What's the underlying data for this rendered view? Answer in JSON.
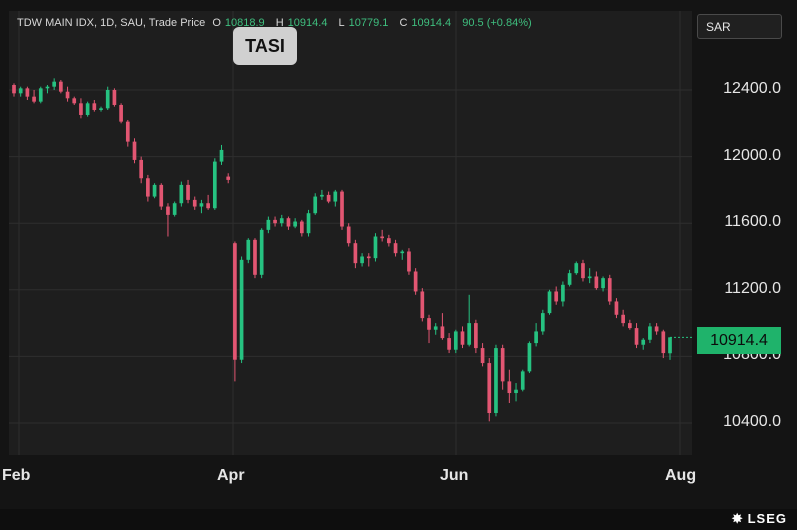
{
  "header": {
    "symbol": "TDW MAIN IDX, 1D, SAU, Trade Price",
    "open_label": "O",
    "open": "10818.9",
    "high_label": "H",
    "high": "10914.4",
    "low_label": "L",
    "low": "10779.1",
    "close_label": "C",
    "close": "10914.4",
    "change": "90.5 (+0.84%)"
  },
  "tag": "TASI",
  "currency": "SAR",
  "logo": "LSEG",
  "colors": {
    "up": "#26c281",
    "down": "#e25672",
    "bg": "#1e1e1e",
    "grid": "#2e2e2e"
  },
  "chart_data": {
    "type": "candlestick",
    "y_ticks": [
      "12400.0",
      "12000.0",
      "11600.0",
      "11200.0",
      "10800.0",
      "10400.0"
    ],
    "x_ticks": [
      "Feb",
      "Apr",
      "Jun",
      "Aug"
    ],
    "ylim": [
      10250,
      12650
    ],
    "last_price": "10914.4",
    "grid": true,
    "candles": [
      [
        12430,
        12440,
        12360,
        12380
      ],
      [
        12380,
        12420,
        12360,
        12410
      ],
      [
        12410,
        12420,
        12340,
        12360
      ],
      [
        12360,
        12400,
        12320,
        12330
      ],
      [
        12330,
        12420,
        12320,
        12410
      ],
      [
        12410,
        12430,
        12380,
        12420
      ],
      [
        12420,
        12470,
        12400,
        12450
      ],
      [
        12450,
        12460,
        12380,
        12390
      ],
      [
        12390,
        12420,
        12330,
        12350
      ],
      [
        12350,
        12360,
        12310,
        12320
      ],
      [
        12320,
        12350,
        12230,
        12250
      ],
      [
        12250,
        12330,
        12240,
        12320
      ],
      [
        12320,
        12340,
        12270,
        12280
      ],
      [
        12280,
        12300,
        12270,
        12290
      ],
      [
        12290,
        12420,
        12280,
        12400
      ],
      [
        12400,
        12410,
        12300,
        12310
      ],
      [
        12310,
        12320,
        12200,
        12210
      ],
      [
        12210,
        12220,
        12060,
        12090
      ],
      [
        12090,
        12110,
        11960,
        11980
      ],
      [
        11980,
        12000,
        11840,
        11870
      ],
      [
        11870,
        11890,
        11730,
        11760
      ],
      [
        11760,
        11840,
        11750,
        11830
      ],
      [
        11830,
        11840,
        11680,
        11700
      ],
      [
        11700,
        11720,
        11520,
        11650
      ],
      [
        11650,
        11730,
        11640,
        11720
      ],
      [
        11720,
        11850,
        11700,
        11830
      ],
      [
        11830,
        11860,
        11720,
        11740
      ],
      [
        11740,
        11760,
        11680,
        11700
      ],
      [
        11700,
        11740,
        11660,
        11720
      ],
      [
        11720,
        11770,
        11680,
        11690
      ],
      [
        11690,
        11990,
        11680,
        11970
      ],
      [
        11970,
        12070,
        11950,
        12040
      ],
      [
        11880,
        11900,
        11840,
        11860
      ],
      [
        11480,
        11490,
        10650,
        10780
      ],
      [
        10780,
        11400,
        10760,
        11380
      ],
      [
        11380,
        11510,
        11360,
        11500
      ],
      [
        11500,
        11510,
        11270,
        11290
      ],
      [
        11290,
        11570,
        11270,
        11560
      ],
      [
        11560,
        11640,
        11540,
        11620
      ],
      [
        11620,
        11640,
        11580,
        11600
      ],
      [
        11600,
        11650,
        11580,
        11630
      ],
      [
        11630,
        11640,
        11560,
        11580
      ],
      [
        11580,
        11630,
        11570,
        11610
      ],
      [
        11610,
        11620,
        11520,
        11540
      ],
      [
        11540,
        11680,
        11520,
        11660
      ],
      [
        11660,
        11780,
        11650,
        11760
      ],
      [
        11760,
        11800,
        11740,
        11770
      ],
      [
        11770,
        11790,
        11720,
        11730
      ],
      [
        11730,
        11800,
        11700,
        11790
      ],
      [
        11790,
        11800,
        11560,
        11580
      ],
      [
        11580,
        11600,
        11460,
        11480
      ],
      [
        11480,
        11500,
        11330,
        11360
      ],
      [
        11360,
        11420,
        11340,
        11400
      ],
      [
        11400,
        11420,
        11340,
        11390
      ],
      [
        11390,
        11540,
        11370,
        11520
      ],
      [
        11520,
        11560,
        11490,
        11510
      ],
      [
        11510,
        11530,
        11460,
        11480
      ],
      [
        11480,
        11500,
        11400,
        11420
      ],
      [
        11420,
        11440,
        11380,
        11430
      ],
      [
        11430,
        11450,
        11290,
        11310
      ],
      [
        11310,
        11330,
        11170,
        11190
      ],
      [
        11190,
        11210,
        11010,
        11030
      ],
      [
        11030,
        11050,
        10880,
        10960
      ],
      [
        10960,
        11000,
        10930,
        10980
      ],
      [
        10980,
        11060,
        10900,
        10910
      ],
      [
        10910,
        10940,
        10820,
        10840
      ],
      [
        10840,
        10960,
        10820,
        10950
      ],
      [
        10950,
        10980,
        10850,
        10870
      ],
      [
        10870,
        11170,
        10860,
        11000
      ],
      [
        11000,
        11020,
        10820,
        10850
      ],
      [
        10850,
        10880,
        10740,
        10760
      ],
      [
        10760,
        10790,
        10410,
        10460
      ],
      [
        10460,
        10870,
        10440,
        10850
      ],
      [
        10850,
        10870,
        10600,
        10650
      ],
      [
        10650,
        10720,
        10520,
        10580
      ],
      [
        10580,
        10640,
        10530,
        10600
      ],
      [
        10600,
        10720,
        10590,
        10710
      ],
      [
        10710,
        10890,
        10700,
        10880
      ],
      [
        10880,
        11000,
        10860,
        10950
      ],
      [
        10950,
        11080,
        10930,
        11060
      ],
      [
        11060,
        11200,
        11050,
        11190
      ],
      [
        11190,
        11220,
        11110,
        11130
      ],
      [
        11130,
        11250,
        11100,
        11230
      ],
      [
        11230,
        11320,
        11220,
        11300
      ],
      [
        11300,
        11370,
        11290,
        11360
      ],
      [
        11360,
        11380,
        11250,
        11270
      ],
      [
        11270,
        11330,
        11240,
        11280
      ],
      [
        11280,
        11310,
        11200,
        11210
      ],
      [
        11210,
        11280,
        11190,
        11270
      ],
      [
        11270,
        11290,
        11110,
        11130
      ],
      [
        11130,
        11150,
        11030,
        11050
      ],
      [
        11050,
        11080,
        10980,
        11000
      ],
      [
        11000,
        11020,
        10960,
        10970
      ],
      [
        10970,
        11000,
        10850,
        10870
      ],
      [
        10870,
        10910,
        10840,
        10900
      ],
      [
        10900,
        11000,
        10880,
        10980
      ],
      [
        10980,
        11000,
        10930,
        10950
      ],
      [
        10950,
        10960,
        10790,
        10820
      ],
      [
        10818.9,
        10914.4,
        10779.1,
        10914.4
      ]
    ]
  }
}
